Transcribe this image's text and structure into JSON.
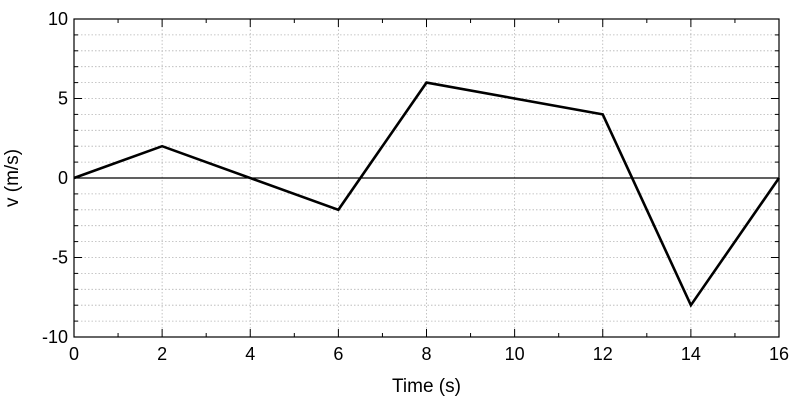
{
  "chart_data": {
    "type": "line",
    "xlabel": "Time (s)",
    "ylabel": "v (m/s)",
    "xlim": [
      0,
      16
    ],
    "ylim": [
      -10,
      10
    ],
    "x_ticks": [
      0,
      2,
      4,
      6,
      8,
      10,
      12,
      14,
      16
    ],
    "y_ticks": [
      -10,
      -5,
      0,
      5,
      10
    ],
    "x_tick_labels": [
      "0",
      "2",
      "4",
      "6",
      "8",
      "10",
      "12",
      "14",
      "16"
    ],
    "y_tick_labels": [
      "-10",
      "-5",
      "0",
      "5",
      "10"
    ],
    "minor_x_step": 1,
    "minor_y_step": 1,
    "grid": true,
    "zero_line": true,
    "series": [
      {
        "x": [
          0,
          2,
          6,
          8,
          12,
          14,
          16
        ],
        "y": [
          0,
          2,
          -2,
          6,
          4,
          -8,
          0
        ],
        "color": "#000000"
      }
    ]
  }
}
